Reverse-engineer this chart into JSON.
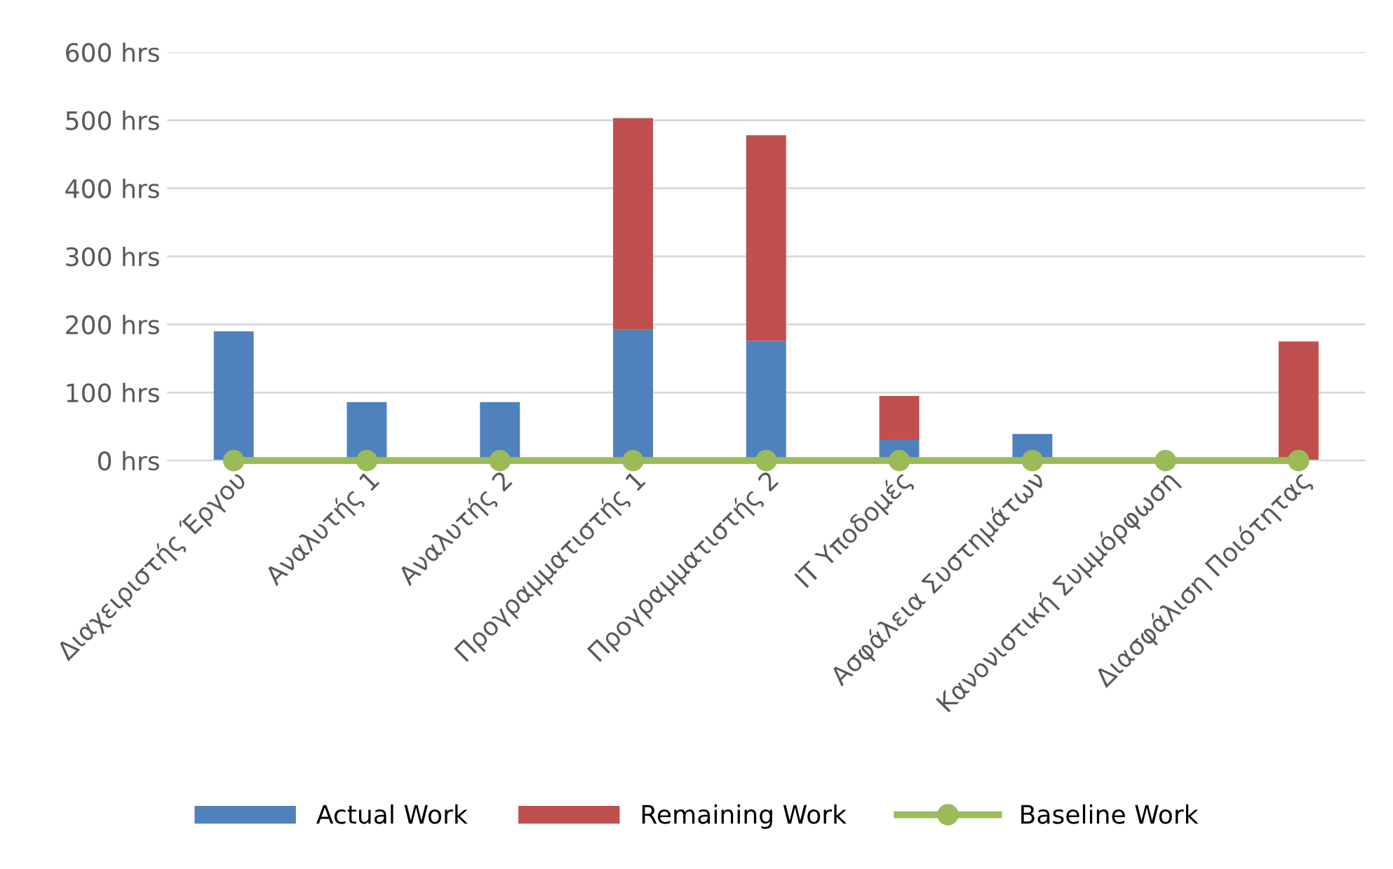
{
  "chart_data": {
    "type": "bar",
    "stacked": true,
    "categories": [
      "Διαχειριστής Έργου",
      "Αναλυτής 1",
      "Αναλυτής 2",
      "Προγραμματιστής 1",
      "Προγραμματιστής 2",
      "IT Υποδομές",
      "Ασφάλεια Συστημάτων",
      "Κανονιστική Συμμόρφωση",
      "Διασφάλιση Ποιότητας"
    ],
    "series": [
      {
        "name": "Actual Work",
        "color": "#4f81bd",
        "values": [
          190,
          86,
          86,
          192,
          176,
          31,
          39,
          0,
          0
        ]
      },
      {
        "name": "Remaining Work",
        "color": "#c0504d",
        "values": [
          0,
          0,
          0,
          311,
          302,
          64,
          0,
          0,
          175
        ]
      },
      {
        "name": "Baseline Work",
        "type": "line",
        "color": "#9bbb59",
        "marker": "circle",
        "values": [
          0,
          0,
          0,
          0,
          0,
          0,
          0,
          0,
          0
        ]
      }
    ],
    "ylim": [
      0,
      600
    ],
    "yticks": [
      {
        "value": 0,
        "label": "0 hrs"
      },
      {
        "value": 100,
        "label": "100 hrs"
      },
      {
        "value": 200,
        "label": "200 hrs"
      },
      {
        "value": 300,
        "label": "300 hrs"
      },
      {
        "value": 400,
        "label": "400 hrs"
      },
      {
        "value": 500,
        "label": "500 hrs"
      },
      {
        "value": 600,
        "label": "600 hrs"
      }
    ],
    "grid": "y",
    "legend": "bottom"
  }
}
